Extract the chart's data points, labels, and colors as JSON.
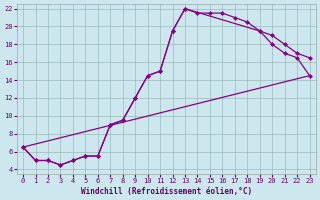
{
  "xlabel": "Windchill (Refroidissement éolien,°C)",
  "bg_color": "#cce8ee",
  "line_color": "#880088",
  "grid_color": "#99bbbb",
  "xlim": [
    -0.5,
    23.5
  ],
  "ylim": [
    3.5,
    22.5
  ],
  "xticks": [
    0,
    1,
    2,
    3,
    4,
    5,
    6,
    7,
    8,
    9,
    10,
    11,
    12,
    13,
    14,
    15,
    16,
    17,
    18,
    19,
    20,
    21,
    22,
    23
  ],
  "yticks": [
    4,
    6,
    8,
    10,
    12,
    14,
    16,
    18,
    20,
    22
  ],
  "line1_x": [
    0,
    1,
    2,
    3,
    4,
    5,
    6,
    7,
    8,
    9,
    10,
    11,
    12,
    13,
    14,
    15,
    16,
    17,
    18,
    19,
    20,
    21,
    22,
    23
  ],
  "line1_y": [
    6.5,
    5.0,
    5.0,
    4.5,
    5.0,
    5.5,
    5.5,
    9.0,
    9.5,
    12.0,
    14.5,
    15.0,
    19.5,
    22.0,
    21.5,
    21.5,
    21.5,
    21.0,
    20.5,
    19.5,
    19.0,
    18.0,
    17.0,
    16.5
  ],
  "line2_x": [
    0,
    1,
    2,
    3,
    4,
    5,
    6,
    7,
    8,
    9,
    10,
    11,
    12,
    13,
    19,
    20,
    21,
    22,
    23
  ],
  "line2_y": [
    6.5,
    5.0,
    5.0,
    4.5,
    5.0,
    5.5,
    5.5,
    9.0,
    9.5,
    12.0,
    14.5,
    15.0,
    19.5,
    22.0,
    19.5,
    18.0,
    17.0,
    16.5,
    14.5
  ],
  "line3_x": [
    0,
    23
  ],
  "line3_y": [
    6.5,
    14.5
  ]
}
